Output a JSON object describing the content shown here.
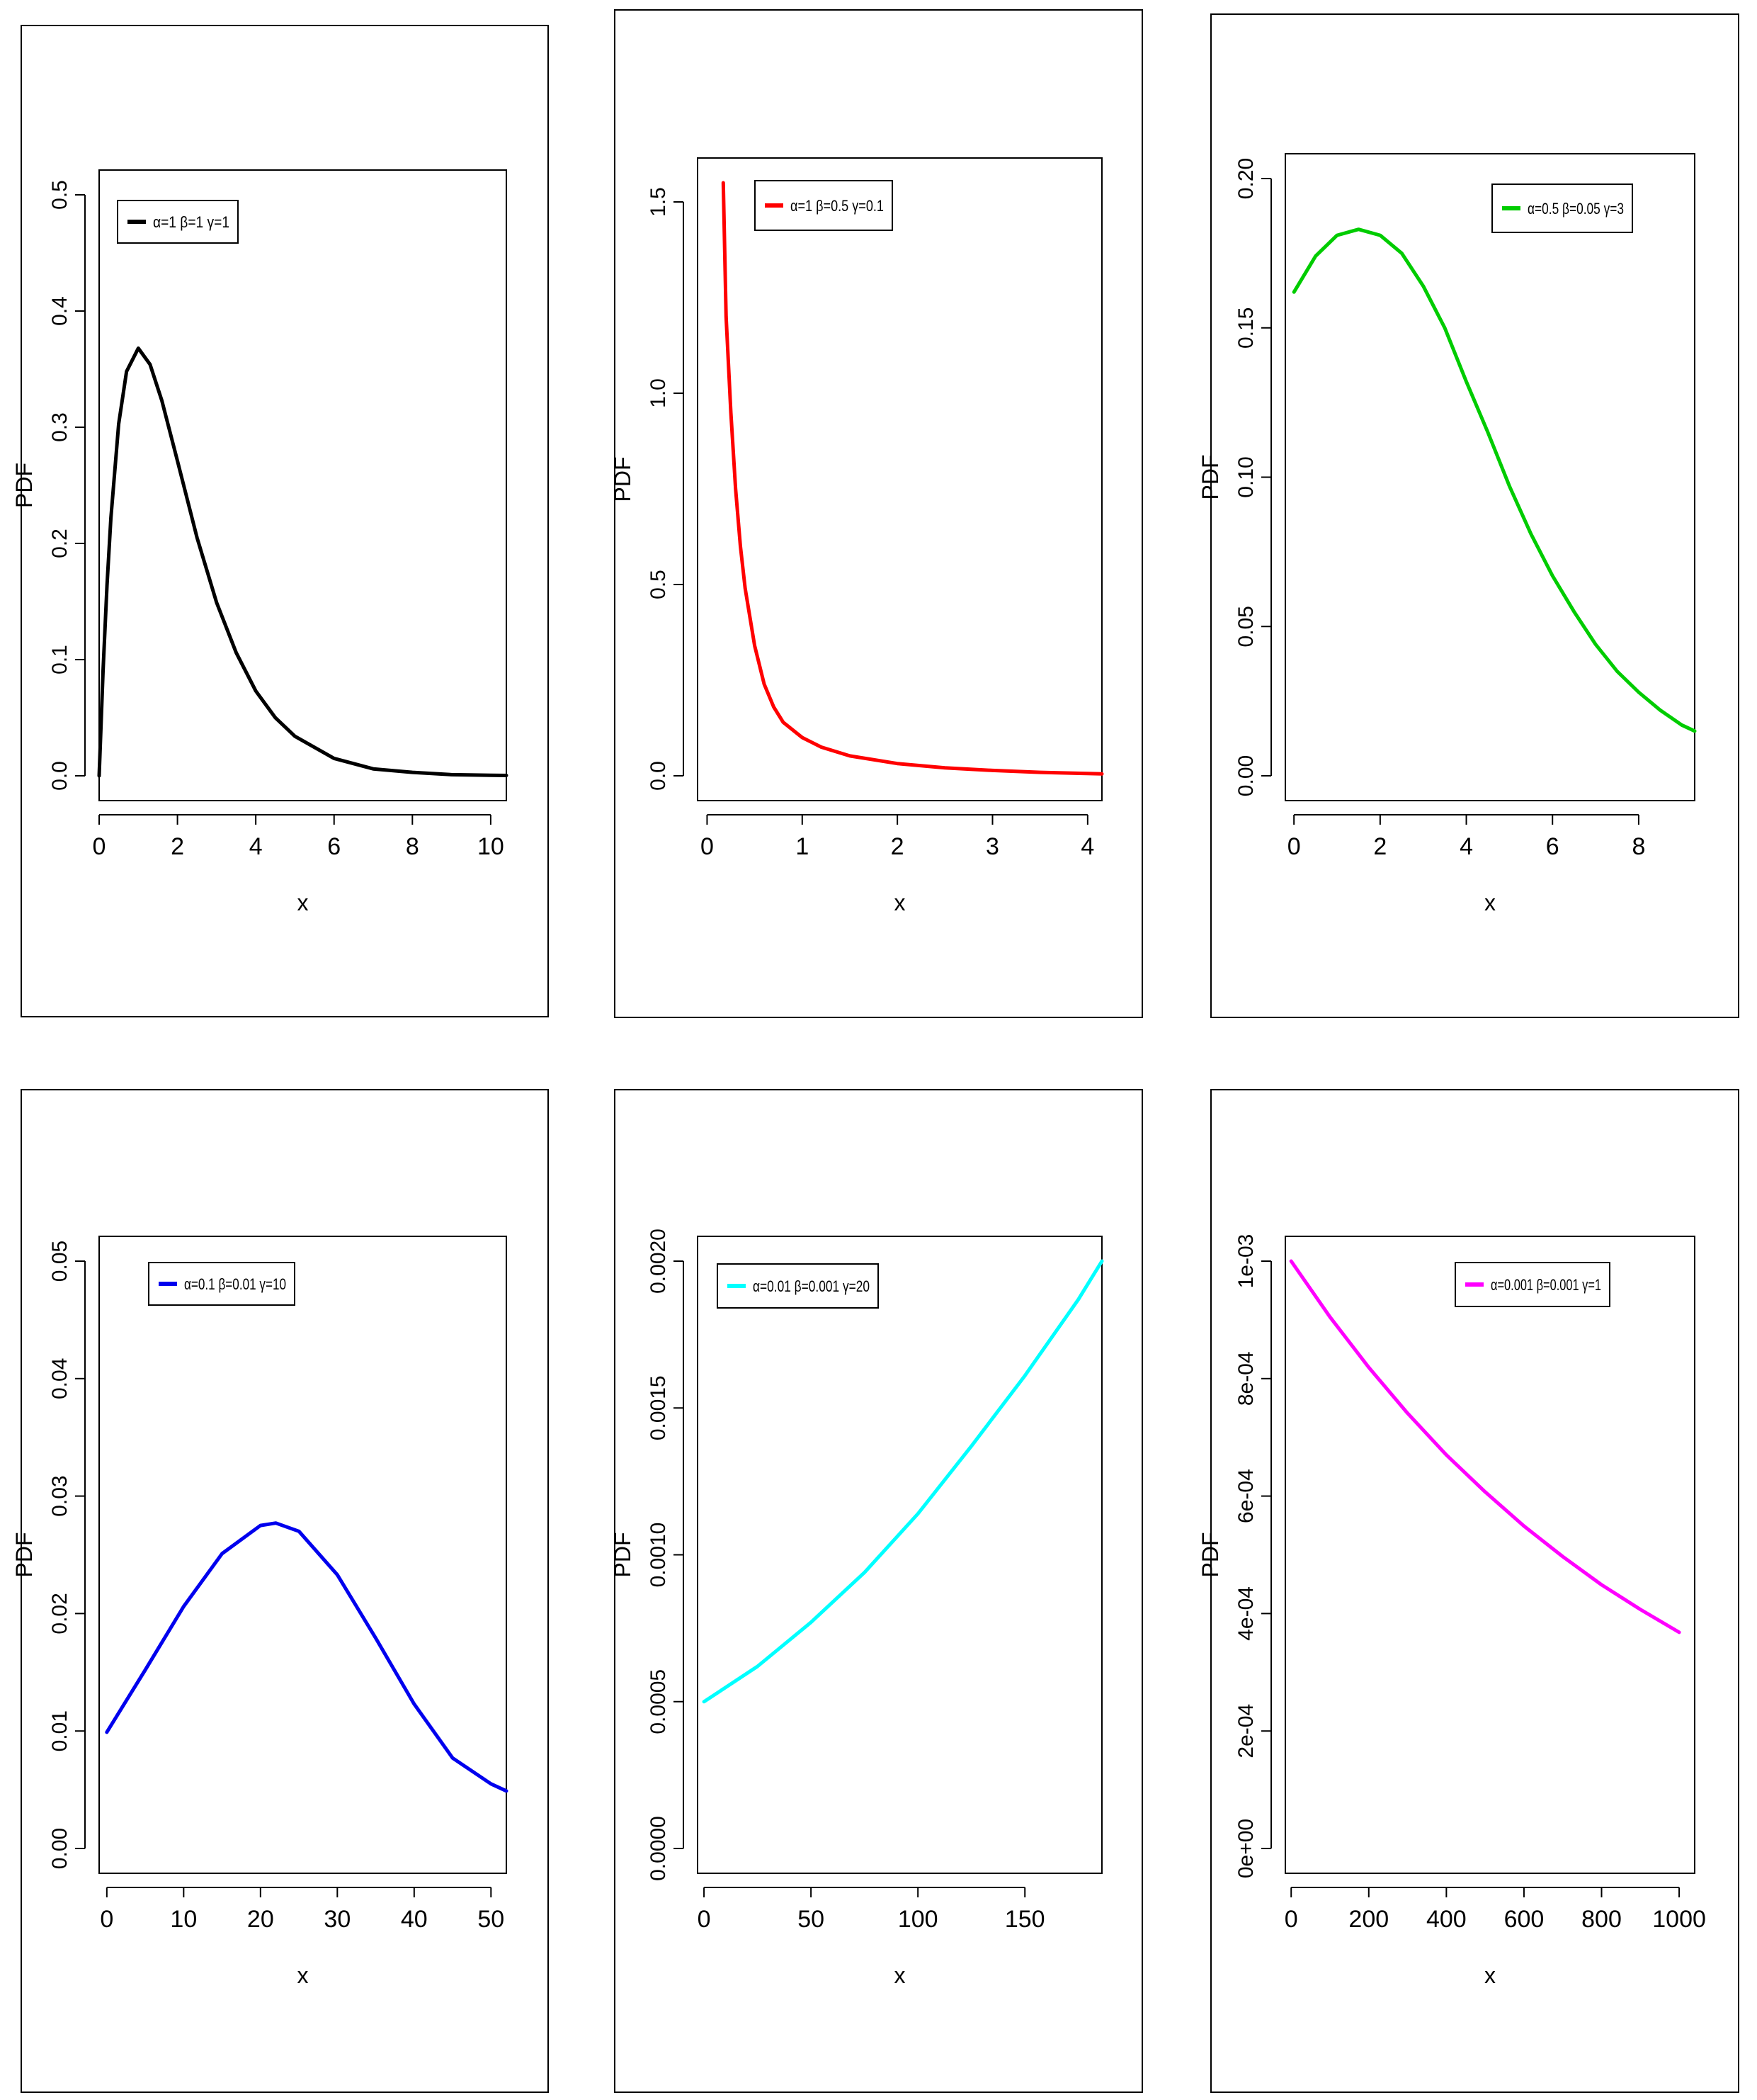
{
  "chart_data": [
    {
      "type": "line",
      "legend": "α=1  β=1  γ=1",
      "color": "#000000",
      "xlabel": "x",
      "ylabel": "PDF",
      "xlim": [
        0,
        10.4
      ],
      "ylim": [
        0,
        0.5
      ],
      "xticks": [
        "0",
        "2",
        "4",
        "6",
        "8",
        "10"
      ],
      "xtick_values": [
        0,
        2,
        4,
        6,
        8,
        10
      ],
      "yticks": [
        "0.0",
        "0.1",
        "0.2",
        "0.3",
        "0.4",
        "0.5"
      ],
      "ytick_values": [
        0,
        0.1,
        0.2,
        0.3,
        0.4,
        0.5
      ],
      "x": [
        0,
        0.1,
        0.2,
        0.3,
        0.5,
        0.7,
        1.0,
        1.3,
        1.6,
        2.0,
        2.5,
        3.0,
        3.5,
        4.0,
        4.5,
        5.0,
        6.0,
        7.0,
        8.0,
        9.0,
        10.0,
        10.4
      ],
      "y": [
        0.0,
        0.09,
        0.164,
        0.222,
        0.303,
        0.348,
        0.368,
        0.354,
        0.323,
        0.271,
        0.205,
        0.149,
        0.106,
        0.073,
        0.05,
        0.034,
        0.015,
        0.006,
        0.003,
        0.001,
        0.0005,
        0.0003
      ]
    },
    {
      "type": "line",
      "legend": "α=1  β=0.5  γ=0.1",
      "color": "#ff0000",
      "xlabel": "x",
      "ylabel": "PDF",
      "xlim": [
        -0.1,
        4.15
      ],
      "ylim": [
        0,
        1.55
      ],
      "xticks": [
        "0",
        "1",
        "2",
        "3",
        "4"
      ],
      "xtick_values": [
        0,
        1,
        2,
        3,
        4
      ],
      "yticks": [
        "0.0",
        "0.5",
        "1.0",
        "1.5"
      ],
      "ytick_values": [
        0,
        0.5,
        1.0,
        1.5
      ],
      "x": [
        0.17,
        0.2,
        0.25,
        0.3,
        0.35,
        0.4,
        0.5,
        0.6,
        0.7,
        0.8,
        1.0,
        1.2,
        1.5,
        2.0,
        2.5,
        3.0,
        3.5,
        4.0,
        4.15
      ],
      "y": [
        1.55,
        1.2,
        0.95,
        0.75,
        0.6,
        0.49,
        0.34,
        0.24,
        0.18,
        0.14,
        0.1,
        0.075,
        0.052,
        0.032,
        0.021,
        0.014,
        0.009,
        0.006,
        0.005
      ]
    },
    {
      "type": "line",
      "legend": "α=0.5  β=0.05  γ=3",
      "color": "#00cc00",
      "xlabel": "x",
      "ylabel": "PDF",
      "xlim": [
        -0.2,
        9.3
      ],
      "ylim": [
        0,
        0.2
      ],
      "xticks": [
        "0",
        "2",
        "4",
        "6",
        "8"
      ],
      "xtick_values": [
        0,
        2,
        4,
        6,
        8
      ],
      "yticks": [
        "0.00",
        "0.05",
        "0.10",
        "0.15",
        "0.20"
      ],
      "ytick_values": [
        0,
        0.05,
        0.1,
        0.15,
        0.2
      ],
      "x": [
        0,
        0.5,
        1.0,
        1.5,
        2.0,
        2.5,
        3.0,
        3.5,
        4.0,
        4.5,
        5.0,
        5.5,
        6.0,
        6.5,
        7.0,
        7.5,
        8.0,
        8.5,
        9.0,
        9.3
      ],
      "y": [
        0.162,
        0.174,
        0.181,
        0.183,
        0.181,
        0.175,
        0.164,
        0.15,
        0.132,
        0.115,
        0.097,
        0.081,
        0.067,
        0.055,
        0.044,
        0.035,
        0.028,
        0.022,
        0.017,
        0.015
      ]
    },
    {
      "type": "line",
      "legend": "α=0.1  β=0.01  γ=10",
      "color": "#0000ee",
      "xlabel": "x",
      "ylabel": "PDF",
      "xlim": [
        -1,
        52
      ],
      "ylim": [
        0,
        0.05
      ],
      "xticks": [
        "0",
        "10",
        "20",
        "30",
        "40",
        "50"
      ],
      "xtick_values": [
        0,
        10,
        20,
        30,
        40,
        50
      ],
      "yticks": [
        "0.00",
        "0.01",
        "0.02",
        "0.03",
        "0.04",
        "0.05"
      ],
      "ytick_values": [
        0,
        0.01,
        0.02,
        0.03,
        0.04,
        0.05
      ],
      "x": [
        0,
        5,
        10,
        15,
        20,
        22,
        25,
        30,
        35,
        40,
        45,
        50,
        52
      ],
      "y": [
        0.0099,
        0.0152,
        0.0206,
        0.0251,
        0.0275,
        0.0277,
        0.027,
        0.0233,
        0.0179,
        0.0123,
        0.0077,
        0.0055,
        0.0049
      ]
    },
    {
      "type": "line",
      "legend": "α=0.01  β=0.001  γ=20",
      "color": "#00ffff",
      "xlabel": "x",
      "ylabel": "PDF",
      "xlim": [
        -3,
        186
      ],
      "ylim": [
        0,
        0.002
      ],
      "xticks": [
        "0",
        "50",
        "100",
        "150"
      ],
      "xtick_values": [
        0,
        50,
        100,
        150
      ],
      "yticks": [
        "0.0000",
        "0.0005",
        "0.0010",
        "0.0015",
        "0.0020"
      ],
      "ytick_values": [
        0,
        0.0005,
        0.001,
        0.0015,
        0.002
      ],
      "x": [
        0,
        25,
        50,
        75,
        100,
        125,
        150,
        175,
        186
      ],
      "y": [
        0.0005,
        0.00062,
        0.00077,
        0.00094,
        0.00114,
        0.00137,
        0.00161,
        0.00187,
        0.002
      ]
    },
    {
      "type": "line",
      "legend": "α=0.001  β=0.001  γ=1",
      "color": "#ff00ff",
      "xlabel": "x",
      "ylabel": "PDF",
      "xlim": [
        -15,
        1040
      ],
      "ylim": [
        0,
        0.001
      ],
      "xticks": [
        "0",
        "200",
        "400",
        "600",
        "800",
        "1000"
      ],
      "xtick_values": [
        0,
        200,
        400,
        600,
        800,
        1000
      ],
      "yticks": [
        "0e+00",
        "2e-04",
        "4e-04",
        "6e-04",
        "8e-04",
        "1e-03"
      ],
      "ytick_values": [
        0,
        0.0002,
        0.0004,
        0.0006,
        0.0008,
        0.001
      ],
      "x": [
        0,
        100,
        200,
        300,
        400,
        500,
        600,
        700,
        800,
        900,
        1000
      ],
      "y": [
        0.001,
        0.000905,
        0.000819,
        0.000741,
        0.00067,
        0.000607,
        0.000549,
        0.000497,
        0.000449,
        0.000407,
        0.000368
      ]
    }
  ]
}
